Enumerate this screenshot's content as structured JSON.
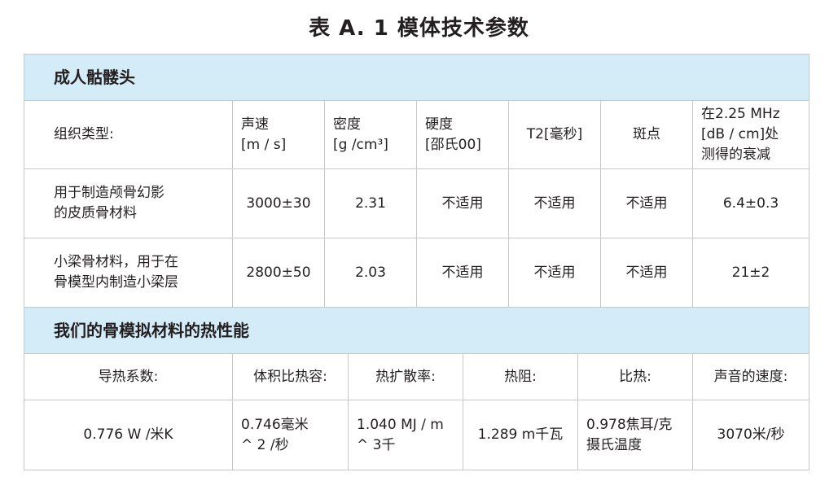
{
  "title": "表 A. 1   模体技术参数",
  "section1": {
    "heading": "成人骷髅头",
    "headers": [
      "组织类型:",
      "声速\n[m / s]",
      "密度\n[g /cm³]",
      "硬度\n[邵氏00]",
      "T2[毫秒]",
      "斑点",
      "在2.25 MHz\n[dB / cm]处\n测得的衰减"
    ],
    "rows": [
      [
        "用于制造颅骨幻影\n的皮质骨材料",
        "3000±30",
        "2.31",
        "不适用",
        "不适用",
        "不适用",
        "6.4±0.3"
      ],
      [
        "小梁骨材料，用于在\n骨模型内制造小梁层",
        "2800±50",
        "2.03",
        "不适用",
        "不适用",
        "不适用",
        "21±2"
      ]
    ]
  },
  "section2": {
    "heading": "我们的骨模拟材料的热性能",
    "headers": [
      "导热系数:",
      "体积比热容:",
      "热扩散率:",
      "热阻:",
      "比热:",
      "声音的速度:"
    ],
    "values": [
      "0.776 W /米K",
      "0.746毫米\n^ 2 /秒",
      "1.040 MJ / m\n^ 3千",
      "1.289 m千瓦",
      "0.978焦耳/克\n摄氏温度",
      "3070米/秒"
    ]
  }
}
